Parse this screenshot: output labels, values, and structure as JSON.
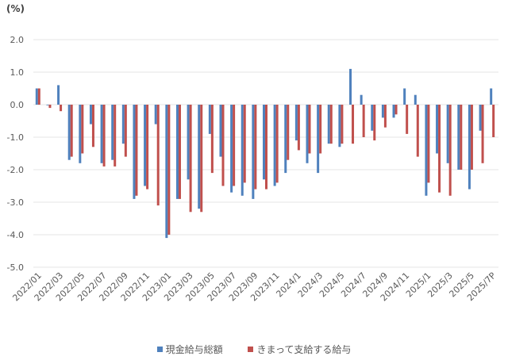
{
  "chart_data": {
    "type": "bar",
    "title": "",
    "unit_label": "(%)",
    "xlabel": "",
    "ylabel": "(%)",
    "ylim": [
      -5.0,
      2.0
    ],
    "yticks": [
      "2.0",
      "1.0",
      "0.0",
      "-1.0",
      "-2.0",
      "-3.0",
      "-4.0",
      "-5.0"
    ],
    "grid": true,
    "legend_position": "bottom",
    "categories": [
      "2022/01",
      "2022/02",
      "2022/03",
      "2022/04",
      "2022/05",
      "2022/06",
      "2022/07",
      "2022/08",
      "2022/09",
      "2022/10",
      "2022/11",
      "2022/12",
      "2023/01",
      "2023/02",
      "2023/03",
      "2023/04",
      "2023/05",
      "2023/06",
      "2023/07",
      "2023/08",
      "2023/09",
      "2023/10",
      "2023/11",
      "2023/12",
      "2024/1",
      "2024/2",
      "2024/3",
      "2024/4",
      "2024/5",
      "2024/6",
      "2024/7",
      "2024/8",
      "2024/9",
      "2024/10",
      "2024/11",
      "2024/12",
      "2025/1",
      "2025/2",
      "2025/3",
      "2025/4",
      "2025/5",
      "2025/6",
      "2025/7P"
    ],
    "tick_labels_shown": [
      "2022/01",
      "2022/03",
      "2022/05",
      "2022/07",
      "2022/09",
      "2022/11",
      "2023/01",
      "2023/03",
      "2023/05",
      "2023/07",
      "2023/09",
      "2023/11",
      "2024/1",
      "2024/3",
      "2024/5",
      "2024/7",
      "2024/9",
      "2024/11",
      "2025/1",
      "2025/3",
      "2025/5",
      "2025/7P"
    ],
    "series": [
      {
        "name": "現金給与総額",
        "color": "#4f81bd",
        "values": [
          0.5,
          0.0,
          0.6,
          -1.7,
          -1.8,
          -0.6,
          -1.8,
          -1.7,
          -1.2,
          -2.9,
          -2.5,
          -0.6,
          -4.1,
          -2.9,
          -2.3,
          -3.2,
          -0.9,
          -1.6,
          -2.7,
          -2.8,
          -2.9,
          -2.3,
          -2.5,
          -2.1,
          -1.1,
          -1.8,
          -2.1,
          -1.2,
          -1.3,
          1.1,
          0.3,
          -0.8,
          -0.4,
          -0.4,
          0.5,
          0.3,
          -2.8,
          -1.5,
          -1.8,
          -2.0,
          -2.6,
          -0.8,
          0.5
        ]
      },
      {
        "name": "きまって支給する給与",
        "color": "#c0504d",
        "values": [
          0.5,
          -0.1,
          -0.2,
          -1.6,
          -1.5,
          -1.3,
          -1.9,
          -1.9,
          -1.6,
          -2.8,
          -2.6,
          -3.1,
          -4.0,
          -2.9,
          -3.3,
          -3.3,
          -2.1,
          -2.5,
          -2.5,
          -2.4,
          -2.6,
          -2.6,
          -2.4,
          -1.7,
          -1.4,
          -1.5,
          -1.5,
          -1.2,
          -1.2,
          -1.2,
          -1.0,
          -1.1,
          -0.7,
          -0.3,
          -0.9,
          -1.6,
          -2.4,
          -2.7,
          -2.8,
          -2.0,
          -2.0,
          -1.8,
          -1.0
        ]
      }
    ]
  },
  "legend": {
    "items": [
      {
        "label": "現金給与総額",
        "color": "#4f81bd"
      },
      {
        "label": "きまって支給する給与",
        "color": "#c0504d"
      }
    ]
  }
}
